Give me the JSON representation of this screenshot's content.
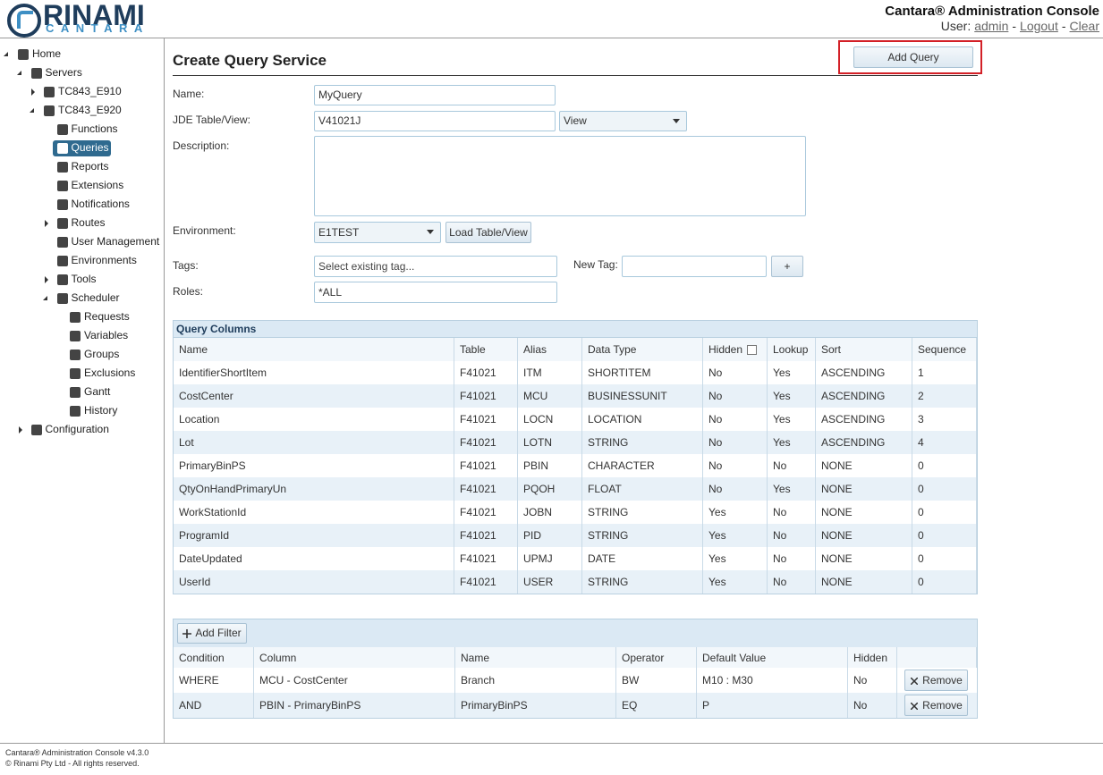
{
  "header": {
    "logo_text": "RINAMI",
    "logo_sub": "CANTARA",
    "app_title": "Cantara® Administration Console",
    "user_prefix": "User:",
    "user": "admin",
    "separator": "-",
    "logout": "Logout",
    "clear": "Clear"
  },
  "sidebar": {
    "items": [
      {
        "label": "Home",
        "level": 0,
        "expander": "open",
        "selected": false
      },
      {
        "label": "Servers",
        "level": 1,
        "expander": "open",
        "selected": false
      },
      {
        "label": "TC843_E910",
        "level": 2,
        "expander": "closed",
        "selected": false
      },
      {
        "label": "TC843_E920",
        "level": 2,
        "expander": "open",
        "selected": false
      },
      {
        "label": "Functions",
        "level": 3,
        "expander": null,
        "selected": false
      },
      {
        "label": "Queries",
        "level": 3,
        "expander": null,
        "selected": true
      },
      {
        "label": "Reports",
        "level": 3,
        "expander": null,
        "selected": false
      },
      {
        "label": "Extensions",
        "level": 3,
        "expander": null,
        "selected": false
      },
      {
        "label": "Notifications",
        "level": 3,
        "expander": null,
        "selected": false
      },
      {
        "label": "Routes",
        "level": 3,
        "expander": "closed",
        "selected": false
      },
      {
        "label": "User Management",
        "level": 3,
        "expander": null,
        "selected": false
      },
      {
        "label": "Environments",
        "level": 3,
        "expander": null,
        "selected": false
      },
      {
        "label": "Tools",
        "level": 3,
        "expander": "closed",
        "selected": false
      },
      {
        "label": "Scheduler",
        "level": 3,
        "expander": "open",
        "selected": false
      },
      {
        "label": "Requests",
        "level": 4,
        "expander": null,
        "selected": false
      },
      {
        "label": "Variables",
        "level": 4,
        "expander": null,
        "selected": false
      },
      {
        "label": "Groups",
        "level": 4,
        "expander": null,
        "selected": false
      },
      {
        "label": "Exclusions",
        "level": 4,
        "expander": null,
        "selected": false
      },
      {
        "label": "Gantt",
        "level": 4,
        "expander": null,
        "selected": false
      },
      {
        "label": "History",
        "level": 4,
        "expander": null,
        "selected": false
      },
      {
        "label": "Configuration",
        "level": 1,
        "expander": "closed",
        "selected": false
      }
    ]
  },
  "form": {
    "title": "Create Query Service",
    "add_button": "Add Query",
    "name_label": "Name:",
    "name_value": "MyQuery",
    "table_label": "JDE Table/View:",
    "table_value": "V41021J",
    "table_kind": "View",
    "description_label": "Description:",
    "environment_label": "Environment:",
    "environment_value": "E1TEST",
    "load_button": "Load Table/View",
    "tags_label": "Tags:",
    "tags_placeholder": "Select existing tag...",
    "new_tag_label": "New Tag:",
    "new_tag_button": "+",
    "roles_label": "Roles:",
    "roles_value": "*ALL"
  },
  "columns_table": {
    "title": "Query Columns",
    "headers": [
      "Name",
      "Table",
      "Alias",
      "Data Type",
      "Hidden",
      "Lookup",
      "Sort",
      "Sequence"
    ],
    "rows": [
      [
        "IdentifierShortItem",
        "F41021",
        "ITM",
        "SHORTITEM",
        "No",
        "Yes",
        "ASCENDING",
        "1"
      ],
      [
        "CostCenter",
        "F41021",
        "MCU",
        "BUSINESSUNIT",
        "No",
        "Yes",
        "ASCENDING",
        "2"
      ],
      [
        "Location",
        "F41021",
        "LOCN",
        "LOCATION",
        "No",
        "Yes",
        "ASCENDING",
        "3"
      ],
      [
        "Lot",
        "F41021",
        "LOTN",
        "STRING",
        "No",
        "Yes",
        "ASCENDING",
        "4"
      ],
      [
        "PrimaryBinPS",
        "F41021",
        "PBIN",
        "CHARACTER",
        "No",
        "No",
        "NONE",
        "0"
      ],
      [
        "QtyOnHandPrimaryUn",
        "F41021",
        "PQOH",
        "FLOAT",
        "No",
        "Yes",
        "NONE",
        "0"
      ],
      [
        "WorkStationId",
        "F41021",
        "JOBN",
        "STRING",
        "Yes",
        "No",
        "NONE",
        "0"
      ],
      [
        "ProgramId",
        "F41021",
        "PID",
        "STRING",
        "Yes",
        "No",
        "NONE",
        "0"
      ],
      [
        "DateUpdated",
        "F41021",
        "UPMJ",
        "DATE",
        "Yes",
        "No",
        "NONE",
        "0"
      ],
      [
        "UserId",
        "F41021",
        "USER",
        "STRING",
        "Yes",
        "No",
        "NONE",
        "0"
      ]
    ]
  },
  "filter_table": {
    "add_button": "Add Filter",
    "headers": [
      "Condition",
      "Column",
      "Name",
      "Operator",
      "Default Value",
      "Hidden"
    ],
    "remove_button": "Remove",
    "rows": [
      [
        "WHERE",
        "MCU - CostCenter",
        "Branch",
        "BW",
        "M10 : M30",
        "No"
      ],
      [
        "AND",
        "PBIN - PrimaryBinPS",
        "PrimaryBinPS",
        "EQ",
        "P",
        "No"
      ]
    ]
  },
  "footer": {
    "version": "Cantara® Administration Console v4.3.0",
    "copyright": "© Rinami Pty Ltd - All rights reserved."
  }
}
